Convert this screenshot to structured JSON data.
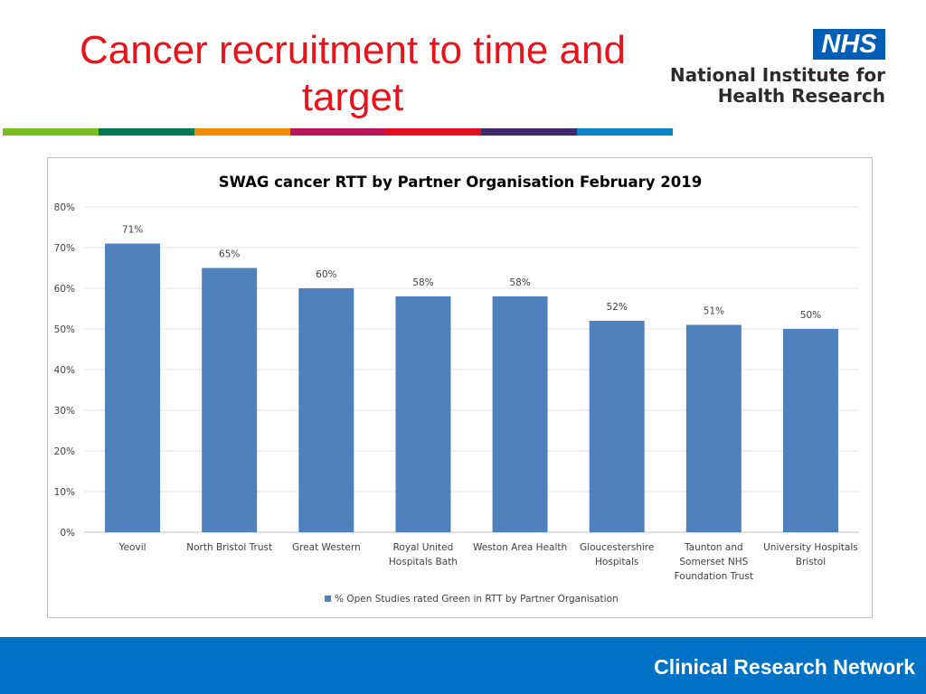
{
  "slide": {
    "title_line1": "Cancer recruitment to time and",
    "title_line2": "target",
    "stripe_colors": [
      "#78be20",
      "#007a53",
      "#f18b00",
      "#b8155b",
      "#e40e20",
      "#3f2a6b",
      "#0b82c9"
    ]
  },
  "logo": {
    "badge": "NHS",
    "line1": "National Institute for",
    "line2": "Health Research",
    "badge_color": "#005eb8"
  },
  "footer": {
    "text": "Clinical Research Network",
    "color": "#0072c6"
  },
  "chart_data": {
    "type": "bar",
    "title": "SWAG cancer RTT by Partner Organisation February 2019",
    "categories": [
      [
        "Yeovil"
      ],
      [
        "North Bristol Trust"
      ],
      [
        "Great Western"
      ],
      [
        "Royal United",
        "Hospitals Bath"
      ],
      [
        "Weston Area Health"
      ],
      [
        "Gloucestershire",
        "Hospitals"
      ],
      [
        "Taunton and",
        "Somerset NHS",
        "Foundation Trust"
      ],
      [
        "University Hospitals",
        "Bristol"
      ]
    ],
    "series": [
      {
        "name": "% Open Studies rated Green in RTT by Partner Organisation",
        "values": [
          71,
          65,
          60,
          58,
          58,
          52,
          51,
          50
        ],
        "color": "#4f81bd"
      }
    ],
    "data_labels": [
      "71%",
      "65%",
      "60%",
      "58%",
      "58%",
      "52%",
      "51%",
      "50%"
    ],
    "ylim": [
      0,
      80
    ],
    "yticks": [
      "0%",
      "10%",
      "20%",
      "30%",
      "40%",
      "50%",
      "60%",
      "70%",
      "80%"
    ],
    "grid": true,
    "legend_position": "bottom"
  }
}
